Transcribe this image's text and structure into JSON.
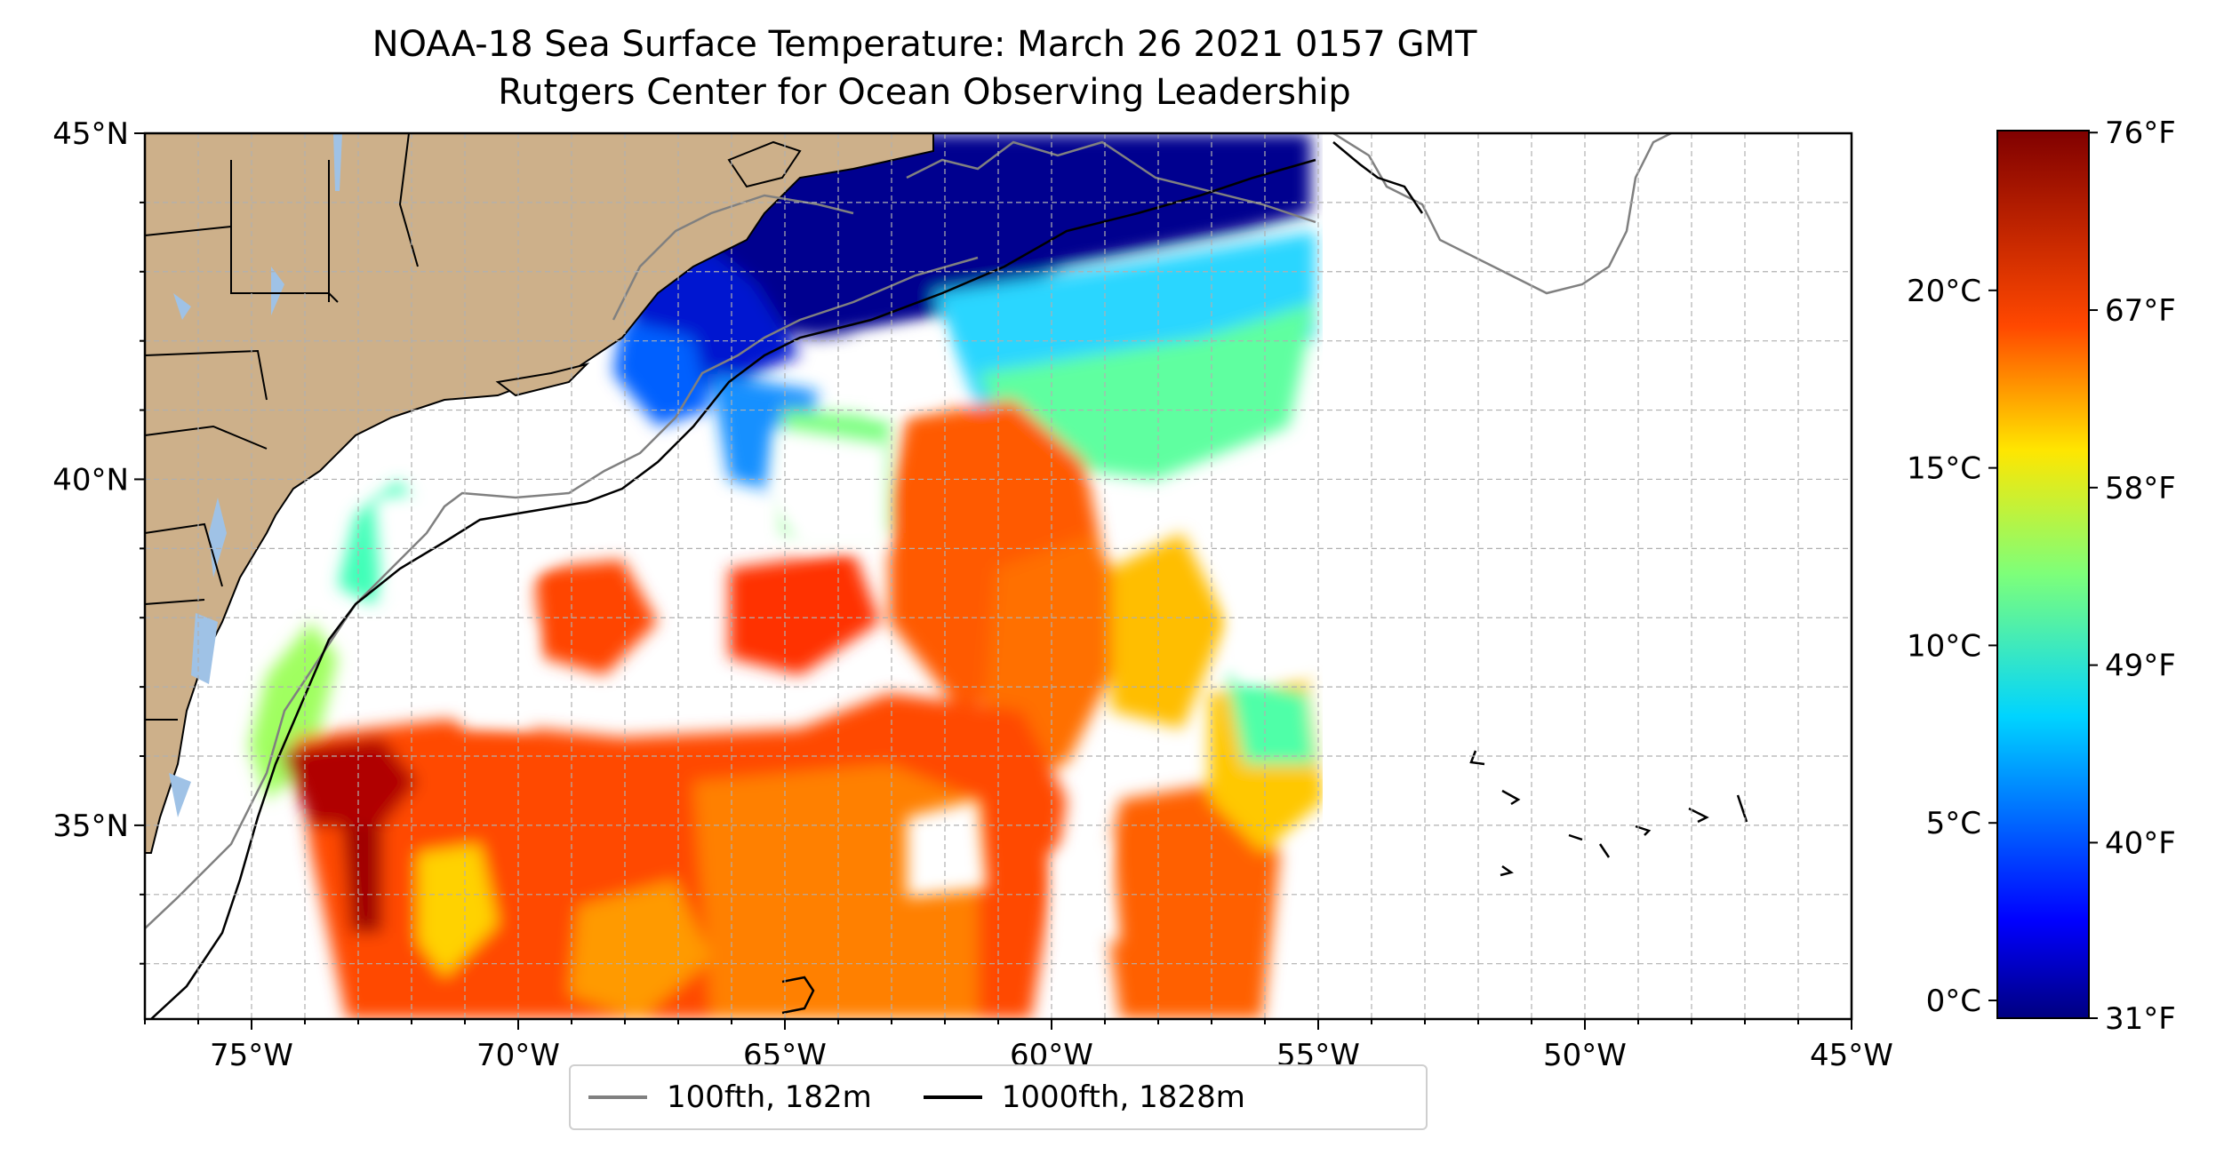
{
  "title": {
    "line1": "NOAA-18 Sea Surface Temperature: March 26 2021 0157 GMT",
    "line2": "Rutgers Center for Ocean Observing Leadership"
  },
  "map": {
    "lon_range": [
      -77,
      -45
    ],
    "lat_range": [
      32.2,
      45
    ],
    "lon_ticks": [
      -75,
      -70,
      -65,
      -60,
      -55,
      -50,
      -45
    ],
    "lat_ticks": [
      35,
      40,
      45
    ],
    "lon_tick_labels": [
      "75°W",
      "70°W",
      "65°W",
      "60°W",
      "55°W",
      "50°W",
      "45°W"
    ],
    "lat_tick_labels": [
      "35°N",
      "40°N",
      "45°N"
    ],
    "gridlines": true,
    "land_color": "#cdb08a",
    "lake_color": "#9fc2e6",
    "isobath_100_color": "#808080",
    "isobath_1000_color": "#000000"
  },
  "colorbar": {
    "colormap": "jet",
    "celsius_range": [
      -0.5,
      24.5
    ],
    "celsius_ticks": [
      0,
      5,
      10,
      15,
      20
    ],
    "celsius_labels": [
      "0°C",
      "5°C",
      "10°C",
      "15°C",
      "20°C"
    ],
    "fahrenheit_ticks": [
      31,
      40,
      49,
      58,
      67,
      76
    ],
    "fahrenheit_labels": [
      "31°F",
      "40°F",
      "49°F",
      "58°F",
      "67°F",
      "76°F"
    ]
  },
  "legend": {
    "items": [
      {
        "label": "100fth, 182m",
        "color": "#808080"
      },
      {
        "label": "1000fth, 1828m",
        "color": "#000000"
      }
    ]
  }
}
